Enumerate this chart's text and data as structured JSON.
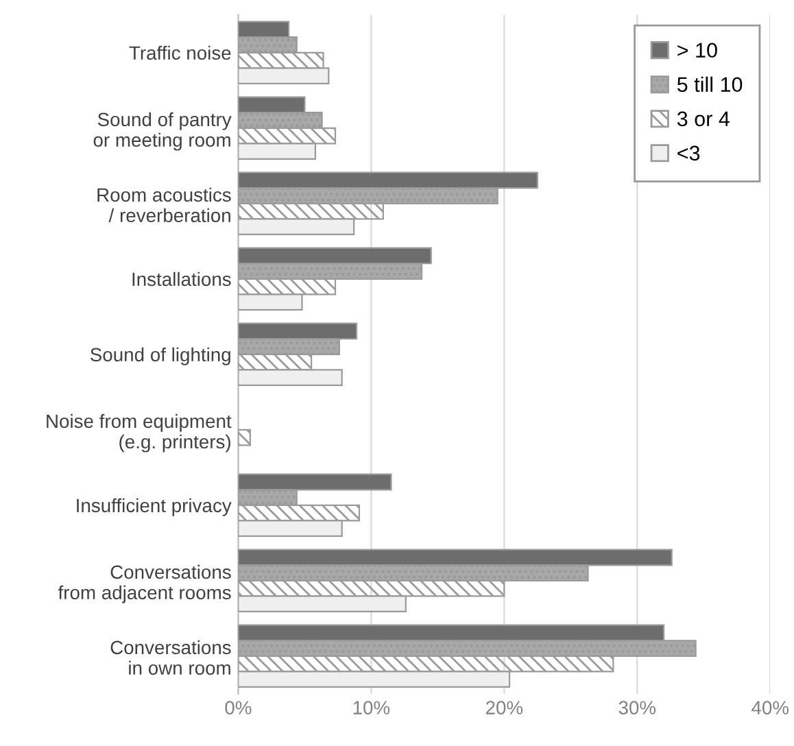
{
  "chart_data": {
    "type": "bar",
    "orientation": "horizontal",
    "categories": [
      "Traffic noise",
      "Sound of pantry\nor meeting room",
      "Room acoustics\n/ reverberation",
      "Installations",
      "Sound of lighting",
      "Noise from equipment\n(e.g. printers)",
      "Insufficient privacy",
      "Conversations\nfrom adjacent rooms",
      "Conversations\nin own room"
    ],
    "series": [
      {
        "name": "> 10",
        "color": "#6d6d6d",
        "values": [
          3.8,
          5.0,
          22.5,
          14.5,
          8.9,
          null,
          11.5,
          32.6,
          32.0
        ]
      },
      {
        "name": "5 till 10",
        "color": "#a8a8a8",
        "values": [
          4.4,
          6.3,
          19.5,
          13.8,
          7.6,
          null,
          4.4,
          26.3,
          34.4
        ]
      },
      {
        "name": "3 or 4",
        "color": "#9a9a9a",
        "values": [
          6.4,
          7.3,
          10.9,
          7.3,
          5.5,
          0.9,
          9.1,
          20.0,
          28.2
        ]
      },
      {
        "name": "<3",
        "color": "#f0f0f0",
        "values": [
          6.8,
          5.8,
          8.7,
          4.8,
          7.8,
          null,
          7.8,
          12.6,
          20.4
        ]
      }
    ],
    "xlim": [
      0,
      40
    ],
    "xticks": [
      {
        "value": 0,
        "label": "0%"
      },
      {
        "value": 10,
        "label": "10%"
      },
      {
        "value": 20,
        "label": "20%"
      },
      {
        "value": 30,
        "label": "30%"
      },
      {
        "value": 40,
        "label": "40%"
      }
    ],
    "grid": "x",
    "legend": "top right"
  }
}
